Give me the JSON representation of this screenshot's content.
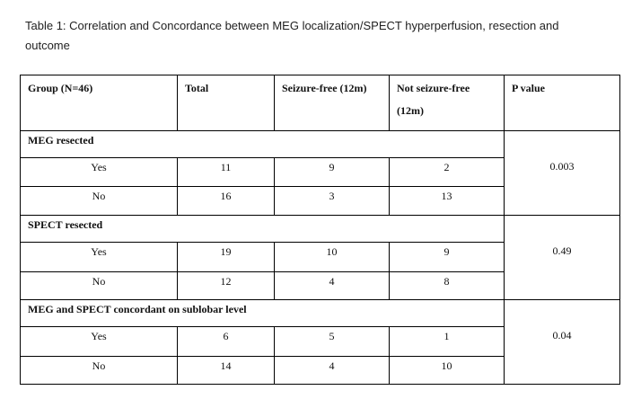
{
  "caption": "Table 1: Correlation and Concordance between MEG localization/SPECT hyperperfusion, resection and outcome",
  "headers": [
    "Group (N=46)",
    "Total",
    "Seizure-free (12m)",
    "Not seizure-free (12m)",
    "P value"
  ],
  "sections": [
    {
      "title": "MEG resected",
      "p_value": "0.003",
      "rows": [
        {
          "label": "Yes",
          "total": "11",
          "seizure_free": "9",
          "not_seizure_free": "2"
        },
        {
          "label": "No",
          "total": "16",
          "seizure_free": "3",
          "not_seizure_free": "13"
        }
      ]
    },
    {
      "title": "SPECT resected",
      "p_value": "0.49",
      "rows": [
        {
          "label": "Yes",
          "total": "19",
          "seizure_free": "10",
          "not_seizure_free": "9"
        },
        {
          "label": "No",
          "total": "12",
          "seizure_free": "4",
          "not_seizure_free": "8"
        }
      ]
    },
    {
      "title": "MEG and SPECT concordant on sublobar level",
      "p_value": "0.04",
      "rows": [
        {
          "label": "Yes",
          "total": "6",
          "seizure_free": "5",
          "not_seizure_free": "1"
        },
        {
          "label": "No",
          "total": "14",
          "seizure_free": "4",
          "not_seizure_free": "10"
        }
      ]
    }
  ]
}
